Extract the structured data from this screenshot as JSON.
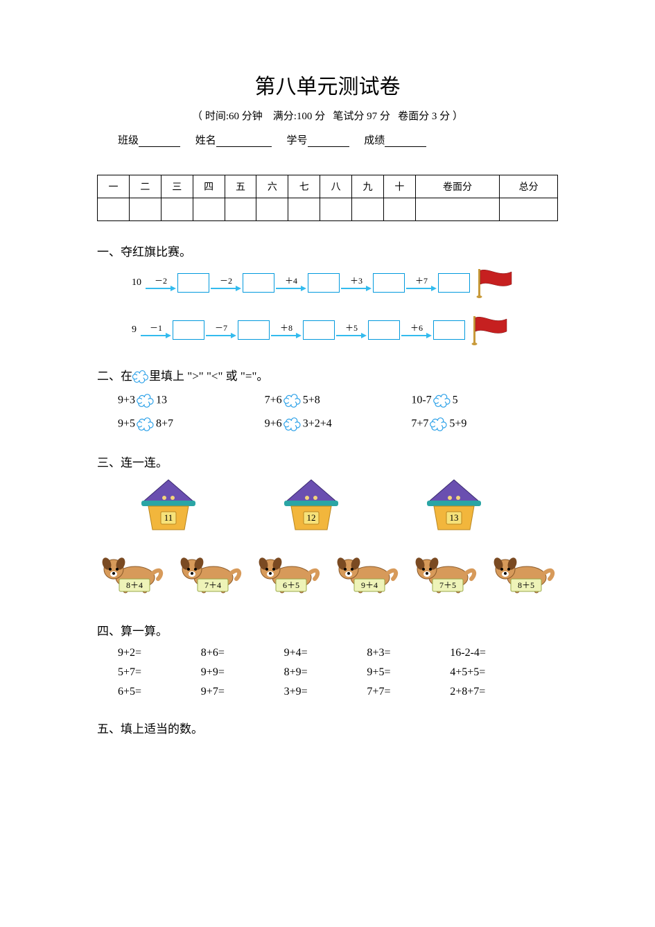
{
  "title": "第八单元测试卷",
  "subtitle_parts": {
    "open": "（",
    "time_label": "时间:60 分钟",
    "full_label": "满分:100 分",
    "written_label": "笔试分 97 分",
    "surface_label": "卷面分 3 分",
    "close": "）"
  },
  "fields": {
    "class": "班级",
    "name": "姓名",
    "number": "学号",
    "score": "成绩"
  },
  "score_table": [
    "一",
    "二",
    "三",
    "四",
    "五",
    "六",
    "七",
    "八",
    "九",
    "十",
    "卷面分",
    "总分"
  ],
  "section1": {
    "heading": "一、夺红旗比赛。",
    "rows": [
      {
        "start": "10",
        "ops": [
          "－2",
          "－2",
          "＋4",
          "＋3",
          "＋7"
        ]
      },
      {
        "start": "9",
        "ops": [
          "－1",
          "－7",
          "＋8",
          "＋5",
          "＋6"
        ]
      }
    ],
    "box_border_color": "#0099dd",
    "arrow_color": "#33bbee",
    "flag_fill": "#c62020",
    "flag_pole": "#c89a3a"
  },
  "section2": {
    "heading_prefix": "二、在",
    "heading_suffix": "里填上 \">\" \"<\" 或 \"=\"。",
    "cloud_fill": "#ffffff",
    "cloud_stroke": "#2aa0e8",
    "items": [
      {
        "l": "9+3",
        "r": "13"
      },
      {
        "l": "7+6",
        "r": "5+8"
      },
      {
        "l": "10-7",
        "r": "5"
      },
      {
        "l": "9+5",
        "r": "8+7"
      },
      {
        "l": "9+6",
        "r": "3+2+4"
      },
      {
        "l": "7+7",
        "r": "5+9"
      }
    ]
  },
  "section3": {
    "heading": "三、连一连。",
    "houses": [
      "11",
      "12",
      "13"
    ],
    "house_roof_color": "#6a4fb0",
    "house_wall_color": "#f2b63c",
    "house_eave_color": "#2aa5a5",
    "house_label_bg": "#f6e27a",
    "dog_body_color": "#d79a5a",
    "dog_label_bg": "#eef3b8",
    "dogs": [
      "8＋4",
      "7＋4",
      "6＋5",
      "9＋4",
      "7＋5",
      "8＋5"
    ]
  },
  "section4": {
    "heading": "四、算一算。",
    "rows": [
      [
        "9+2=",
        "8+6=",
        "9+4=",
        "8+3=",
        "16-2-4="
      ],
      [
        "5+7=",
        "9+9=",
        "8+9=",
        "9+5=",
        "4+5+5="
      ],
      [
        "6+5=",
        "9+7=",
        "3+9=",
        "7+7=",
        "2+8+7="
      ]
    ]
  },
  "section5": {
    "heading": "五、填上适当的数。"
  }
}
